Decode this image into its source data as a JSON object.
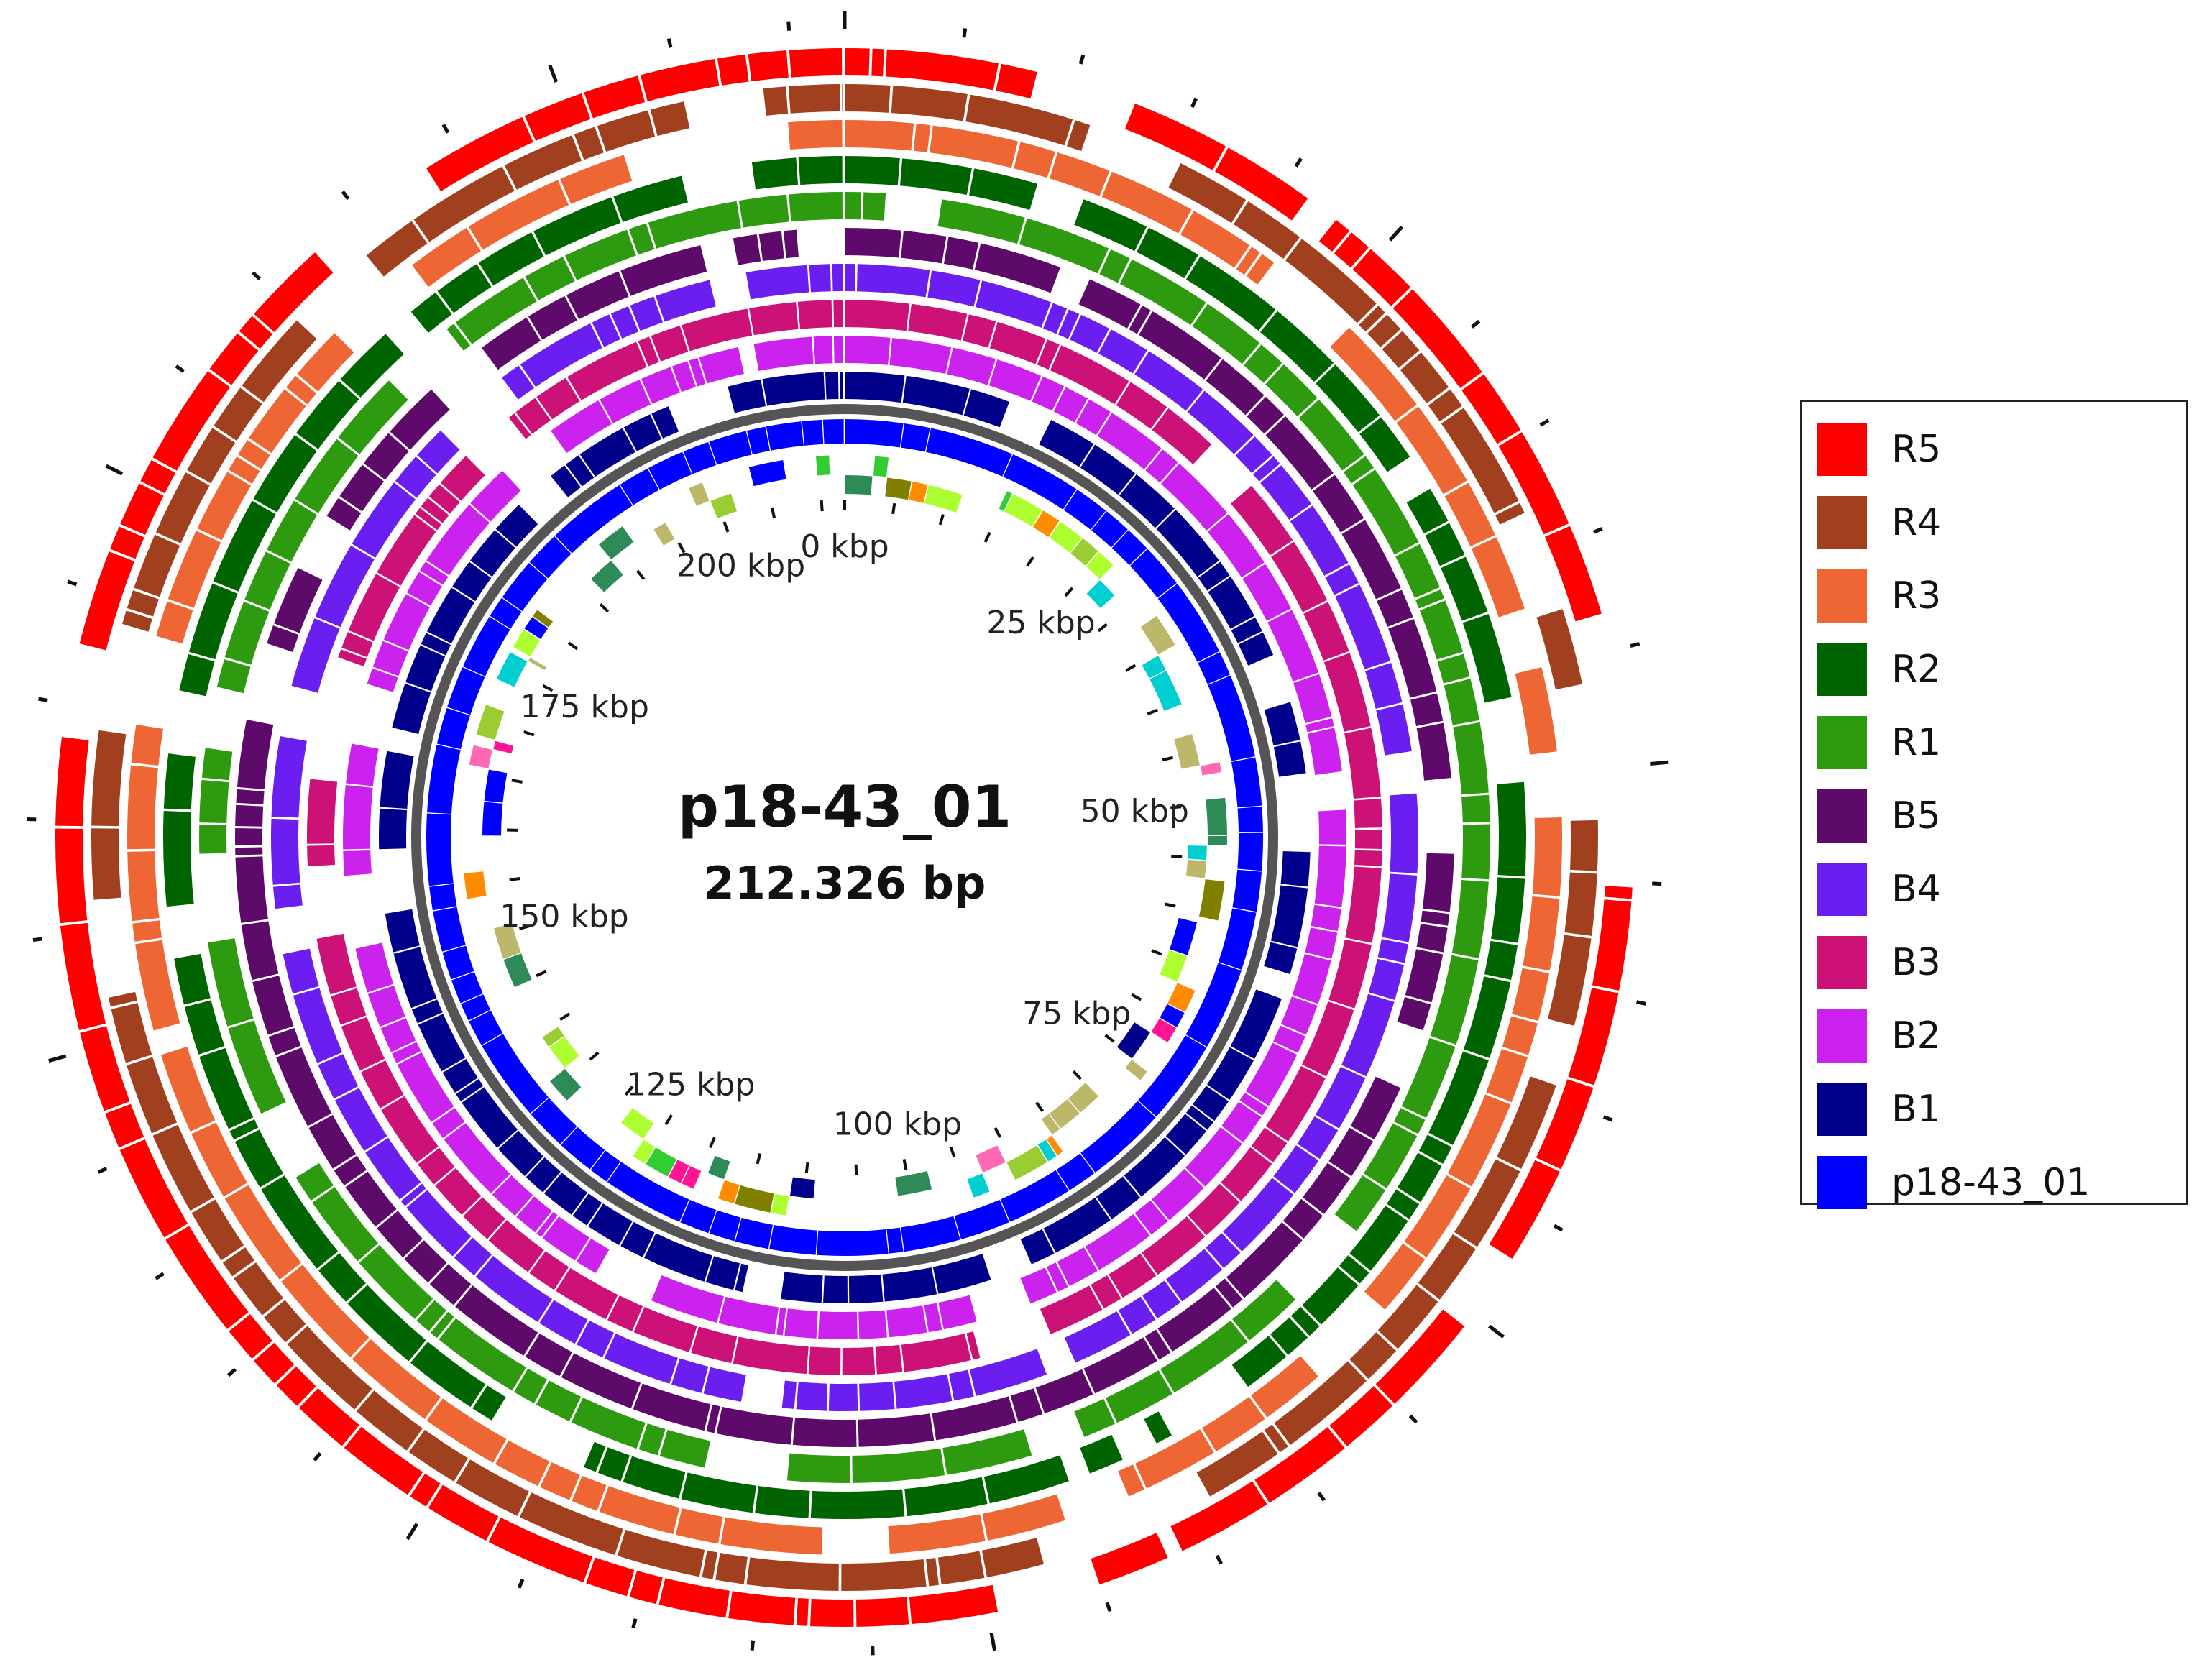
{
  "plasmid": {
    "name": "p18-43_01",
    "size_label": "212.326 bp",
    "length_kbp": 212.326
  },
  "axis": {
    "ticks": [
      {
        "kbp": 0,
        "label": "0 kbp"
      },
      {
        "kbp": 25,
        "label": "25 kbp"
      },
      {
        "kbp": 50,
        "label": "50 kbp"
      },
      {
        "kbp": 75,
        "label": "75 kbp"
      },
      {
        "kbp": 100,
        "label": "100 kbp"
      },
      {
        "kbp": 125,
        "label": "125 kbp"
      },
      {
        "kbp": 150,
        "label": "150 kbp"
      },
      {
        "kbp": 175,
        "label": "175 kbp"
      },
      {
        "kbp": 200,
        "label": "200 kbp"
      }
    ]
  },
  "rings": [
    {
      "name": "B1",
      "color": "#00008b"
    },
    {
      "name": "B2",
      "color": "#cc22ee"
    },
    {
      "name": "B3",
      "color": "#cc1177"
    },
    {
      "name": "B4",
      "color": "#6a1ef0"
    },
    {
      "name": "B5",
      "color": "#5e0a6a"
    },
    {
      "name": "R1",
      "color": "#2e9a10"
    },
    {
      "name": "R2",
      "color": "#006400"
    },
    {
      "name": "R3",
      "color": "#ee6633"
    },
    {
      "name": "R4",
      "color": "#a0401e"
    },
    {
      "name": "R5",
      "color": "#ff0000"
    }
  ],
  "reference_color": "#0000ff",
  "legend": {
    "items": [
      {
        "label": "R5",
        "color": "#ff0000"
      },
      {
        "label": "R4",
        "color": "#a0401e"
      },
      {
        "label": "R3",
        "color": "#ee6633"
      },
      {
        "label": "R2",
        "color": "#006400"
      },
      {
        "label": "R1",
        "color": "#2e9a10"
      },
      {
        "label": "B5",
        "color": "#5e0a6a"
      },
      {
        "label": "B4",
        "color": "#6a1ef0"
      },
      {
        "label": "B3",
        "color": "#cc1177"
      },
      {
        "label": "B2",
        "color": "#cc22ee"
      },
      {
        "label": "B1",
        "color": "#00008b"
      },
      {
        "label": "p18-43_01",
        "color": "#0000ff"
      }
    ]
  },
  "chart_data": {
    "type": "circular-genome-comparison",
    "title": "p18-43_01",
    "subtitle": "212.326 bp",
    "genome_length_kbp": 212.326,
    "reference": "p18-43_01",
    "comparison_rings_inner_to_outer": [
      "B1",
      "B2",
      "B3",
      "B4",
      "B5",
      "R1",
      "R2",
      "R3",
      "R4",
      "R5"
    ],
    "gap_regions_kbp": [
      [
        185,
        189
      ],
      [
        163,
        166
      ],
      [
        152,
        154
      ],
      [
        48,
        50
      ],
      [
        92,
        94
      ],
      [
        204,
        206
      ]
    ]
  }
}
